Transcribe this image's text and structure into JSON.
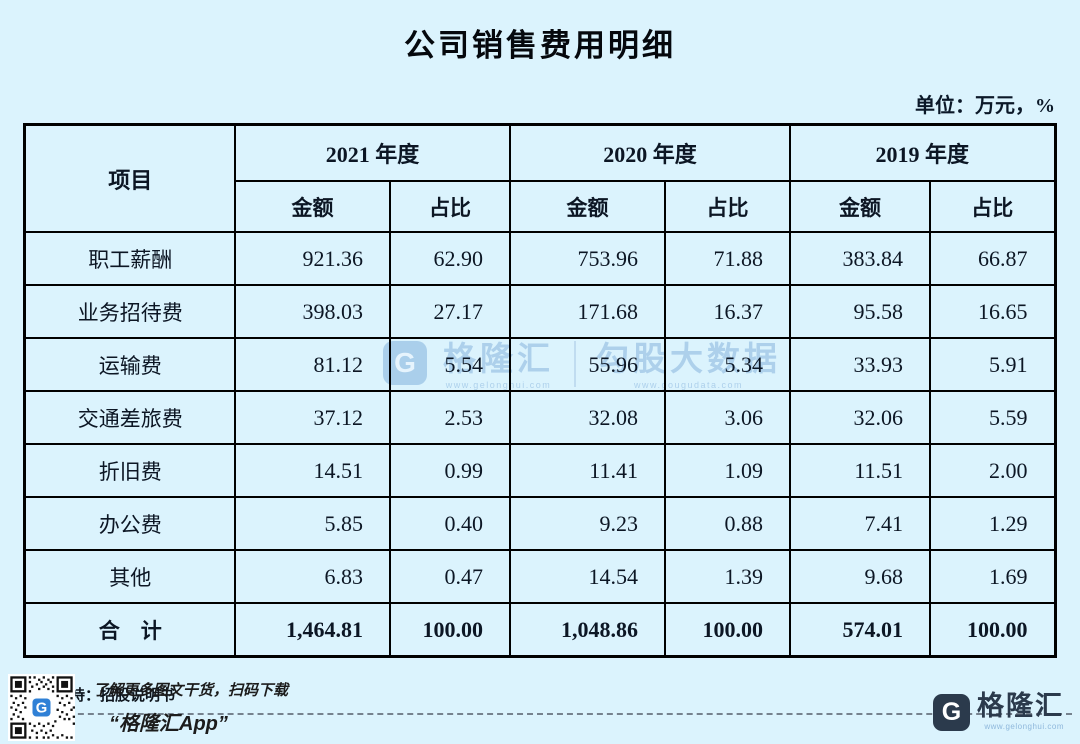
{
  "page": {
    "title": "公司销售费用明细",
    "unit_note": "单位：万元，%"
  },
  "table": {
    "item_header": "项目",
    "year_groups": [
      {
        "label": "2021 年度"
      },
      {
        "label": "2020 年度"
      },
      {
        "label": "2019 年度"
      }
    ],
    "sub_headers": {
      "amount": "金额",
      "ratio": "占比"
    },
    "rows": [
      {
        "item": "职工薪酬",
        "values": [
          "921.36",
          "62.90",
          "753.96",
          "71.88",
          "383.84",
          "66.87"
        ]
      },
      {
        "item": "业务招待费",
        "values": [
          "398.03",
          "27.17",
          "171.68",
          "16.37",
          "95.58",
          "16.65"
        ]
      },
      {
        "item": "运输费",
        "values": [
          "81.12",
          "5.54",
          "55.96",
          "5.34",
          "33.93",
          "5.91"
        ]
      },
      {
        "item": "交通差旅费",
        "values": [
          "37.12",
          "2.53",
          "32.08",
          "3.06",
          "32.06",
          "5.59"
        ]
      },
      {
        "item": "折旧费",
        "values": [
          "14.51",
          "0.99",
          "11.41",
          "1.09",
          "11.51",
          "2.00"
        ]
      },
      {
        "item": "办公费",
        "values": [
          "5.85",
          "0.40",
          "9.23",
          "0.88",
          "7.41",
          "1.29"
        ]
      },
      {
        "item": "其他",
        "values": [
          "6.83",
          "0.47",
          "14.54",
          "1.39",
          "9.68",
          "1.69"
        ]
      }
    ],
    "total_row": {
      "item": "合　计",
      "values": [
        "1,464.81",
        "100.00",
        "1,048.86",
        "100.00",
        "574.01",
        "100.00"
      ]
    }
  },
  "chart_data": {
    "type": "table",
    "title": "公司销售费用明细",
    "unit": "万元，%",
    "columns": [
      "项目",
      "2021年度 金额",
      "2021年度 占比",
      "2020年度 金额",
      "2020年度 占比",
      "2019年度 金额",
      "2019年度 占比"
    ],
    "rows": [
      [
        "职工薪酬",
        921.36,
        62.9,
        753.96,
        71.88,
        383.84,
        66.87
      ],
      [
        "业务招待费",
        398.03,
        27.17,
        171.68,
        16.37,
        95.58,
        16.65
      ],
      [
        "运输费",
        81.12,
        5.54,
        55.96,
        5.34,
        33.93,
        5.91
      ],
      [
        "交通差旅费",
        37.12,
        2.53,
        32.08,
        3.06,
        32.06,
        5.59
      ],
      [
        "折旧费",
        14.51,
        0.99,
        11.41,
        1.09,
        11.51,
        2.0
      ],
      [
        "办公费",
        5.85,
        0.4,
        9.23,
        0.88,
        7.41,
        1.29
      ],
      [
        "其他",
        6.83,
        0.47,
        14.54,
        1.39,
        9.68,
        1.69
      ],
      [
        "合计",
        1464.81,
        100.0,
        1048.86,
        100.0,
        574.01,
        100.0
      ]
    ]
  },
  "watermark": {
    "brand_initial": "G",
    "brand": "格隆汇",
    "brand_url": "www.gelonghui.com",
    "product": "勾股大数据",
    "product_url": "www.gougudata.com"
  },
  "footer": {
    "data_support": "数据支持：招股说明书",
    "promo_line1": "了解更多图文干货，扫码下载",
    "promo_line2": "“格隆汇App”",
    "brand_initial": "G",
    "brand_name": "格隆汇",
    "brand_url": "www.gelonghui.com"
  },
  "colors": {
    "background": "#dbf3fd",
    "table_border": "#000000",
    "text": "#0c1624",
    "watermark_blue": "#a6cbe9",
    "brand_navy": "#2b3a4c",
    "brand_blue": "#2f80d6"
  }
}
